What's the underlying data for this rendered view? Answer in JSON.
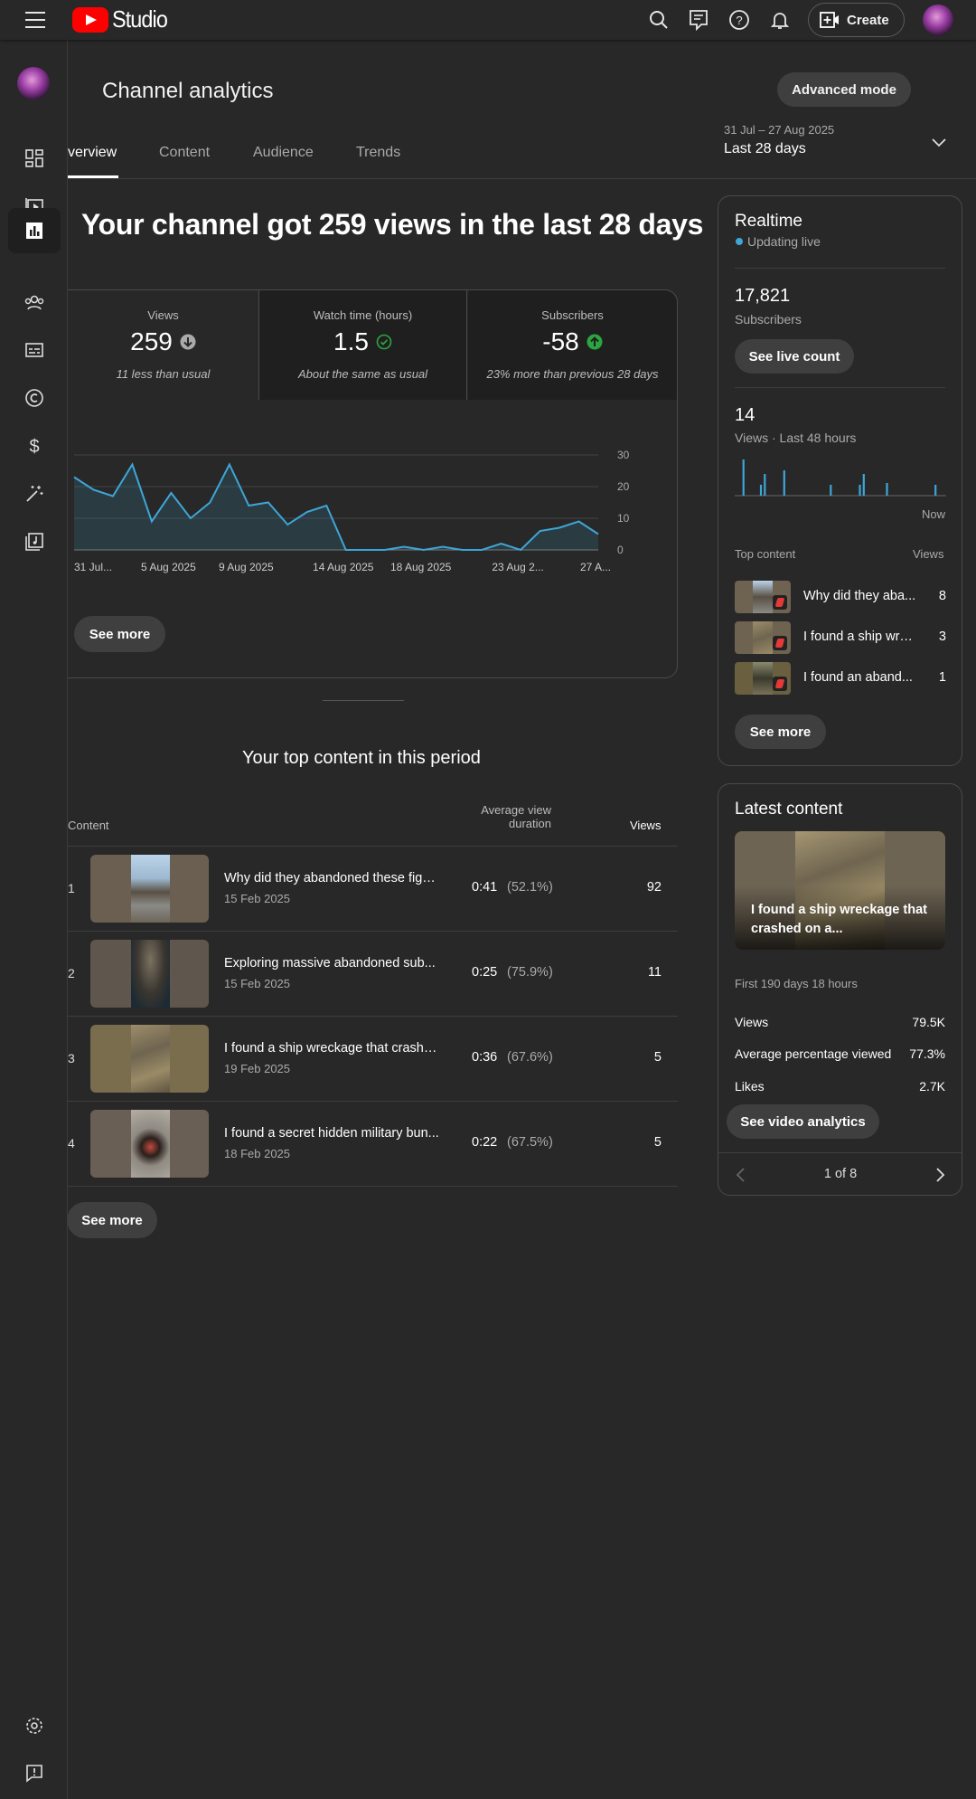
{
  "header": {
    "logo_text": "Studio",
    "create_label": "Create"
  },
  "sidebar": {
    "items": [
      "dashboard-icon",
      "content-icon",
      "analytics-icon",
      "community-icon",
      "subtitles-icon",
      "copyright-icon",
      "earn-icon",
      "customization-icon",
      "audio-library-icon",
      "settings-icon",
      "feedback-icon"
    ],
    "active": "analytics"
  },
  "page": {
    "title": "Channel analytics",
    "advanced_mode": "Advanced mode",
    "tabs": [
      "verview",
      "Content",
      "Audience",
      "Trends"
    ],
    "date_range_sub": "31 Jul – 27 Aug 2025",
    "date_range_main": "Last 28 days"
  },
  "summary": {
    "heading": "Your channel got 259 views in the last 28 days",
    "metrics": [
      {
        "label": "Views",
        "value": "259",
        "note": "11 less than usual",
        "trend": "down"
      },
      {
        "label": "Watch time (hours)",
        "value": "1.5",
        "note": "About the same as usual",
        "trend": "same"
      },
      {
        "label": "Subscribers",
        "value": "-58",
        "note": "23% more than previous 28 days",
        "trend": "up"
      }
    ],
    "see_more": "See more"
  },
  "chart_data": {
    "type": "area",
    "x_tick_labels": [
      "31 Jul...",
      "5 Aug 2025",
      "9 Aug 2025",
      "14 Aug 2025",
      "18 Aug 2025",
      "23 Aug 2...",
      "27 A..."
    ],
    "y_ticks": [
      0,
      10,
      20,
      30
    ],
    "ylim": [
      0,
      30
    ],
    "series": [
      {
        "values": [
          23,
          19,
          17,
          27,
          9,
          18,
          10,
          15,
          27,
          14,
          15,
          8,
          12,
          14,
          0,
          0,
          0,
          1,
          0,
          1,
          0,
          0,
          2,
          0,
          6,
          7,
          9,
          5
        ]
      }
    ],
    "color": "#3ea6d7"
  },
  "top_content": {
    "heading": "Your top content in this period",
    "col_content": "Content",
    "col_avd_1": "Average view",
    "col_avd_2": "duration",
    "col_views": "Views",
    "rows": [
      {
        "rank": "1",
        "title": "Why did they abandoned these fight...",
        "date": "15 Feb 2025",
        "duration": "0:41",
        "pct": "(52.1%)",
        "views": "92"
      },
      {
        "rank": "2",
        "title": "Exploring massive abandoned sub...",
        "date": "15 Feb 2025",
        "duration": "0:25",
        "pct": "(75.9%)",
        "views": "11"
      },
      {
        "rank": "3",
        "title": "I found a ship wreckage that crashe...",
        "date": "19 Feb 2025",
        "duration": "0:36",
        "pct": "(67.6%)",
        "views": "5"
      },
      {
        "rank": "4",
        "title": "I found a secret hidden military bun...",
        "date": "18 Feb 2025",
        "duration": "0:22",
        "pct": "(67.5%)",
        "views": "5"
      }
    ],
    "see_more": "See more"
  },
  "realtime": {
    "title": "Realtime",
    "status": "Updating live",
    "subscribers_value": "17,821",
    "subscribers_label": "Subscribers",
    "see_live_count": "See live count",
    "views_value": "14",
    "views_label": "Views · Last 48 hours",
    "now_label": "Now",
    "bars": [
      0,
      0,
      0,
      0,
      1,
      0,
      0,
      0,
      0,
      0,
      0,
      0,
      0,
      0.3,
      0,
      0.6,
      0,
      0,
      0,
      0,
      0,
      0,
      0,
      0,
      0,
      0.7,
      0,
      0,
      0,
      0,
      0,
      0,
      0,
      0,
      0,
      0,
      0,
      0,
      0,
      0,
      0,
      0,
      0,
      0,
      0,
      0,
      0,
      0,
      0,
      0.3,
      0,
      0,
      0,
      0,
      0,
      0,
      0,
      0,
      0,
      0,
      0,
      0,
      0,
      0,
      0.3,
      0,
      0.6,
      0,
      0,
      0,
      0,
      0,
      0,
      0,
      0,
      0,
      0,
      0,
      0.35,
      0,
      0,
      0,
      0,
      0,
      0,
      0,
      0,
      0,
      0,
      0,
      0,
      0,
      0,
      0,
      0,
      0,
      0,
      0,
      0,
      0,
      0,
      0,
      0,
      0.3,
      0,
      0,
      0,
      0,
      0
    ],
    "top_content_label": "Top content",
    "views_col": "Views",
    "items": [
      {
        "title": "Why did they aba...",
        "views": "8"
      },
      {
        "title": "I found a ship wre...",
        "views": "3"
      },
      {
        "title": "I found an aband...",
        "views": "1"
      }
    ],
    "see_more": "See more"
  },
  "latest": {
    "title": "Latest content",
    "video_title": "I found a ship wreckage that crashed on a...",
    "period": "First 190 days 18 hours",
    "stats": [
      {
        "label": "Views",
        "value": "79.5K"
      },
      {
        "label": "Average percentage viewed",
        "value": "77.3%"
      },
      {
        "label": "Likes",
        "value": "2.7K"
      }
    ],
    "see_video_analytics": "See video analytics",
    "pager": "1 of 8"
  },
  "colors": {
    "accent": "#3ea6d7",
    "up": "#2ba640",
    "background": "#282828"
  }
}
